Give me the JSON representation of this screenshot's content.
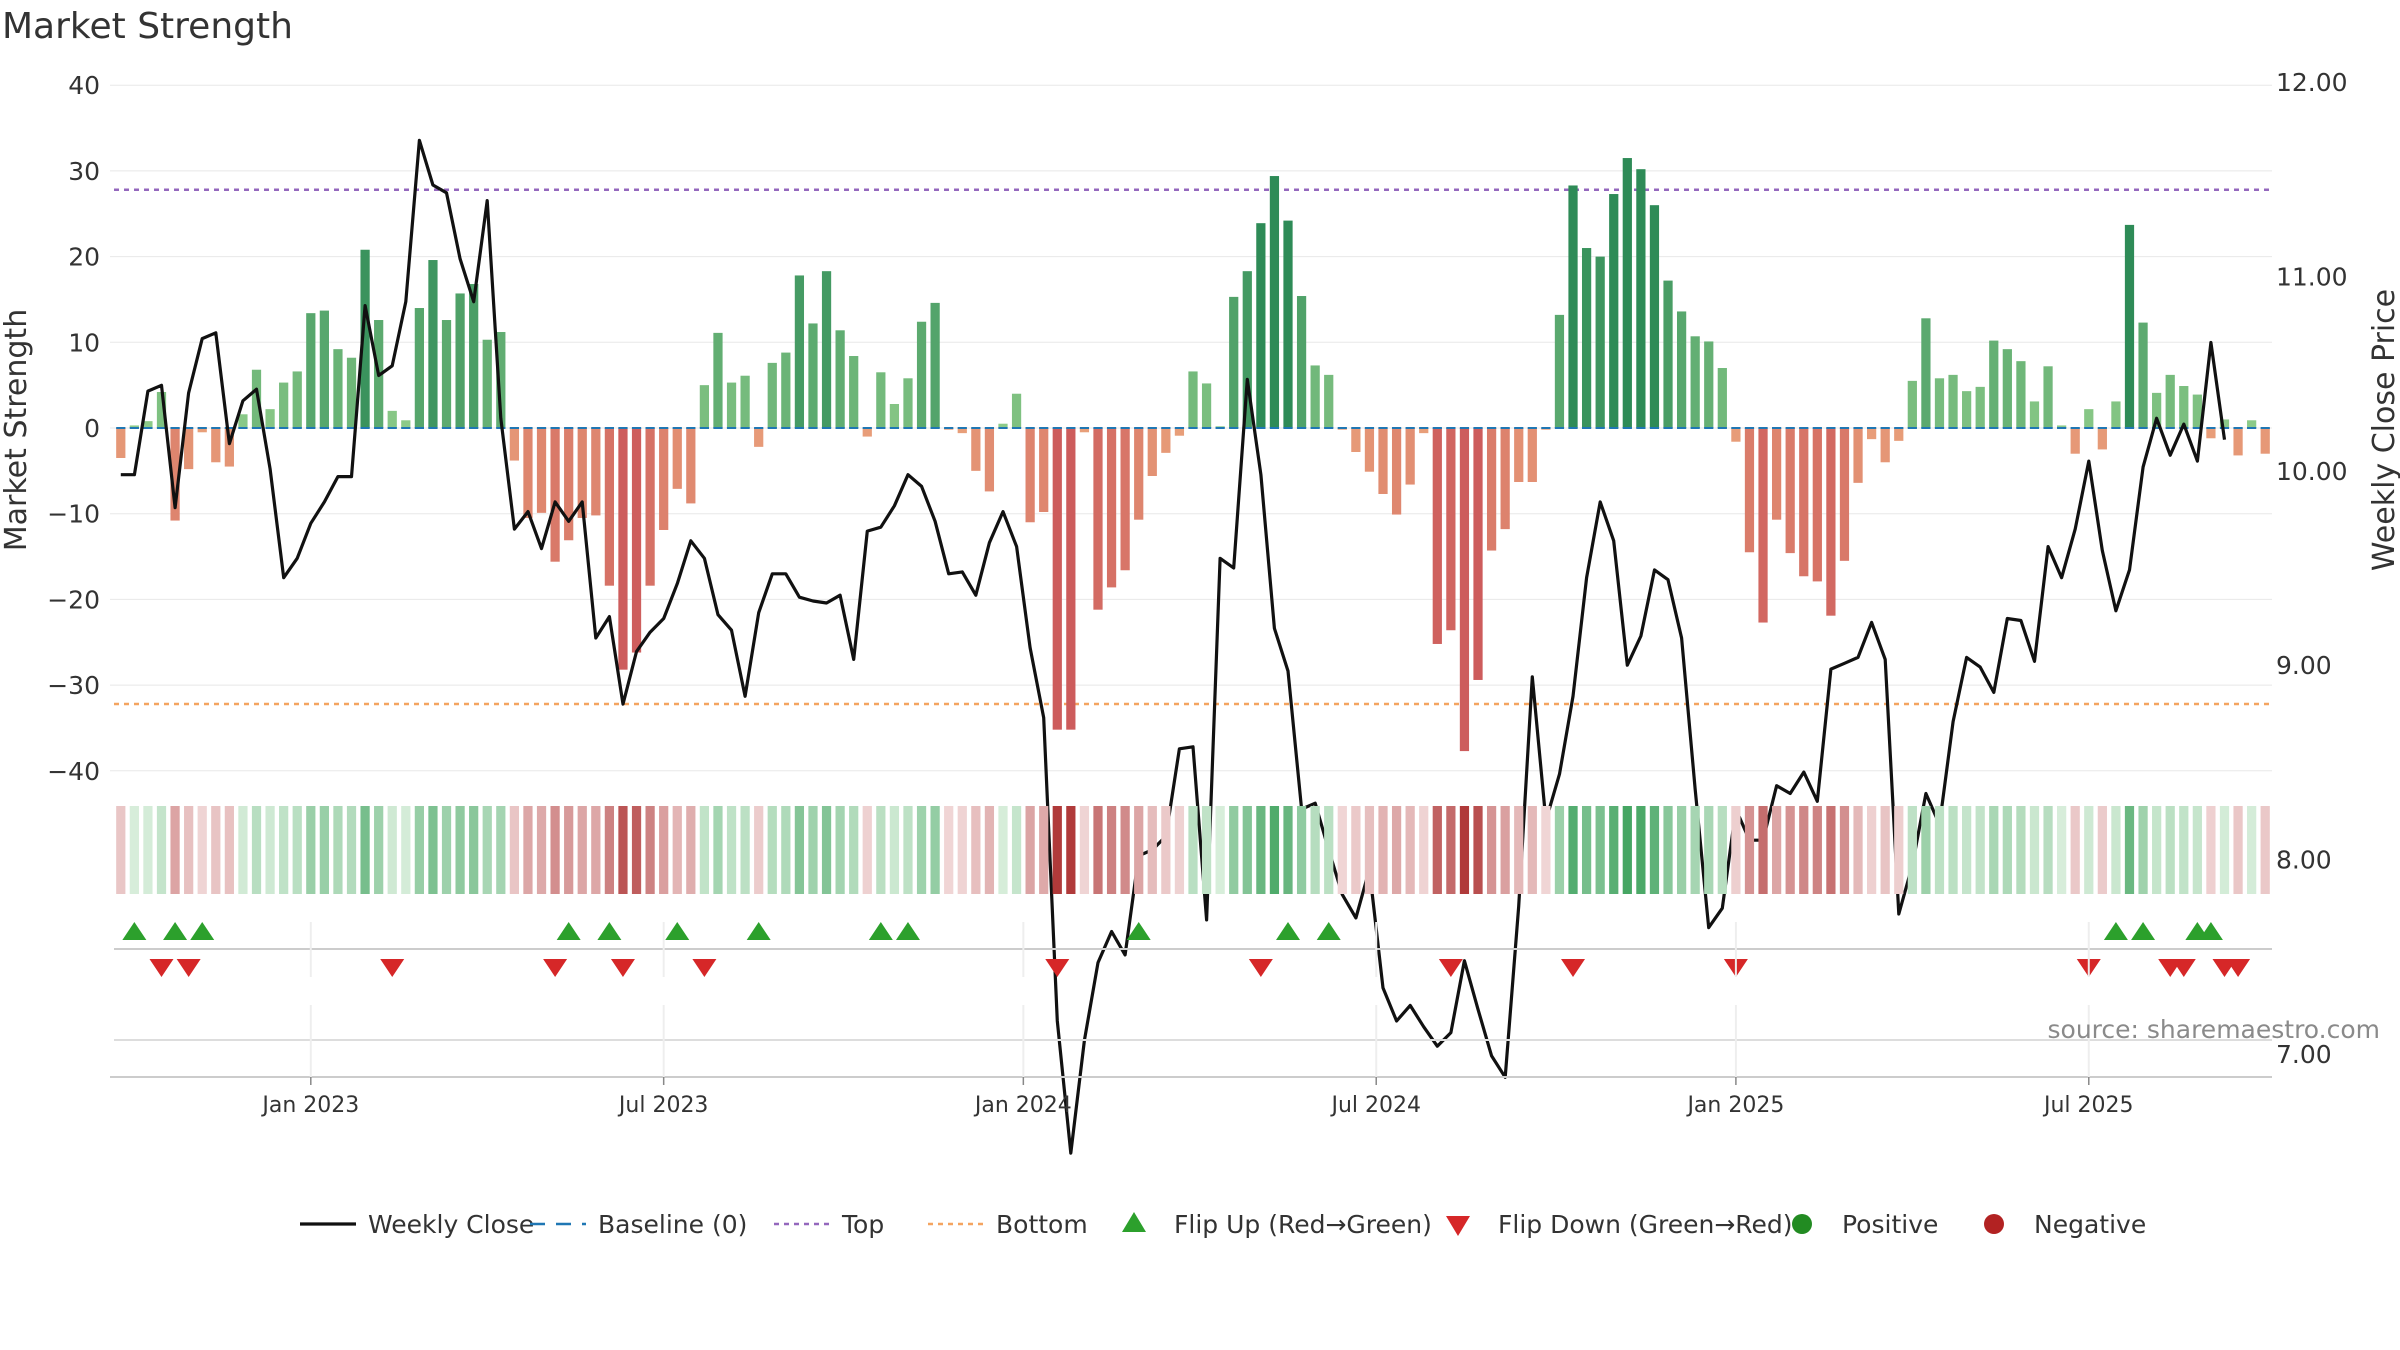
{
  "chart_data": {
    "type": "bar",
    "title": "Market Strength",
    "ylabel": "Market Strength",
    "y2label": "Weekly Close Price",
    "ylim": [
      -42,
      42
    ],
    "y2lim": [
      6.05,
      12.2
    ],
    "yticks": [
      40,
      30,
      20,
      10,
      0,
      -10,
      -20,
      -30,
      -40
    ],
    "ytick_labels": [
      "40",
      "30",
      "20",
      "10",
      "0",
      "−10",
      "−20",
      "−30",
      "−40"
    ],
    "y2ticks": [
      12,
      11,
      10,
      9,
      8,
      7
    ],
    "y2tick_labels": [
      "12.00",
      "11.00",
      "10.00",
      "9.00",
      "8.00",
      "7.00"
    ],
    "top_line": 27.8,
    "bottom_line": -32.2,
    "baseline": 0,
    "date_ticks": [
      {
        "index": 14.5,
        "label": "Jan 2023"
      },
      {
        "index": 40.5,
        "label": "Jul 2023"
      },
      {
        "index": 67,
        "label": "Jan 2024"
      },
      {
        "index": 93,
        "label": "Jul 2024"
      },
      {
        "index": 119.5,
        "label": "Jan 2025"
      },
      {
        "index": 145.5,
        "label": "Jul 2025"
      }
    ],
    "strength": [
      -3.5,
      0.3,
      0.8,
      4.2,
      -10.8,
      -4.8,
      -0.5,
      -4,
      -4.5,
      1.6,
      6.8,
      2.2,
      5.3,
      6.6,
      13.4,
      13.7,
      9.2,
      8.2,
      20.8,
      12.6,
      2,
      0.9,
      14,
      19.6,
      12.6,
      15.7,
      16.8,
      10.3,
      11.2,
      -3.8,
      -10.5,
      -9.9,
      -15.6,
      -13.1,
      -10.5,
      -10.2,
      -18.4,
      -28.2,
      -26.2,
      -18.4,
      -11.9,
      -7.1,
      -8.8,
      5,
      11.1,
      5.3,
      6.1,
      -2.2,
      7.6,
      8.8,
      17.8,
      12.2,
      18.3,
      11.4,
      8.4,
      -1,
      6.5,
      2.8,
      5.8,
      12.4,
      14.6,
      -0.2,
      -0.6,
      -5,
      -7.4,
      0.5,
      4,
      -11,
      -9.8,
      -35.2,
      -35.2,
      -0.5,
      -21.2,
      -18.6,
      -16.6,
      -10.7,
      -5.6,
      -2.9,
      -0.9,
      6.6,
      5.2,
      0.2,
      15.3,
      18.3,
      23.9,
      29.4,
      24.2,
      15.4,
      7.3,
      6.2,
      -0.2,
      -2.8,
      -5.1,
      -7.7,
      -10.1,
      -6.6,
      -0.6,
      -25.2,
      -23.6,
      -37.7,
      -29.4,
      -14.3,
      -11.8,
      -6.3,
      -6.3,
      -0.2,
      13.2,
      28.3,
      21,
      20,
      27.3,
      31.5,
      30.2,
      26,
      17.2,
      13.6,
      10.7,
      10.1,
      7,
      -1.6,
      -14.5,
      -22.7,
      -10.7,
      -14.6,
      -17.3,
      -17.9,
      -21.9,
      -15.5,
      -6.4,
      -1.3,
      -4,
      -1.5,
      5.5,
      12.8,
      5.8,
      6.2,
      4.3,
      4.8,
      10.2,
      9.2,
      7.8,
      3.1,
      7.2,
      0.3,
      -3,
      2.2,
      -2.5,
      3.1,
      23.7,
      12.3,
      4.1,
      6.2,
      4.9,
      3.9,
      -1.2,
      1,
      -3.2,
      0.9,
      -3
    ],
    "close": [
      9.98,
      9.98,
      10.41,
      10.44,
      9.81,
      10.4,
      10.68,
      10.71,
      10.14,
      10.36,
      10.42,
      10.01,
      9.45,
      9.55,
      9.73,
      9.84,
      9.97,
      9.97,
      10.85,
      10.49,
      10.54,
      10.87,
      11.7,
      11.47,
      11.43,
      11.09,
      10.87,
      11.39,
      10.27,
      9.7,
      9.79,
      9.6,
      9.84,
      9.74,
      9.84,
      9.14,
      9.25,
      8.8,
      9.07,
      9.17,
      9.24,
      9.42,
      9.64,
      9.55,
      9.26,
      9.18,
      8.84,
      9.27,
      9.47,
      9.47,
      9.35,
      9.33,
      9.32,
      9.36,
      9.03,
      9.69,
      9.71,
      9.82,
      9.98,
      9.92,
      9.74,
      9.47,
      9.48,
      9.36,
      9.63,
      9.79,
      9.61,
      9.09,
      8.73,
      7.17,
      6.49,
      7.07,
      7.47,
      7.63,
      7.51,
      8.02,
      8.05,
      8.12,
      8.57,
      8.58,
      7.69,
      9.55,
      9.5,
      10.47,
      9.98,
      9.19,
      8.97,
      8.26,
      8.29,
      8.05,
      7.82,
      7.7,
      7.95,
      7.34,
      7.17,
      7.25,
      7.14,
      7.04,
      7.11,
      7.48,
      7.23,
      6.99,
      6.88,
      7.76,
      8.94,
      8.2,
      8.44,
      8.84,
      9.45,
      9.84,
      9.64,
      9,
      9.15,
      9.49,
      9.44,
      9.14,
      8.36,
      7.65,
      7.75,
      8.26,
      8.1,
      8.1,
      8.38,
      8.34,
      8.45,
      8.3,
      8.98,
      9.01,
      9.04,
      9.22,
      9.03,
      7.72,
      7.97,
      8.34,
      8.18,
      8.71,
      9.04,
      8.99,
      8.86,
      9.24,
      9.23,
      9.02,
      9.61,
      9.45,
      9.7,
      10.05,
      9.59,
      9.28,
      9.49,
      10.02,
      10.27,
      10.08,
      10.24,
      10.05,
      10.66,
      10.16
    ],
    "flip_up": [
      1,
      4,
      6,
      33,
      36,
      41,
      47,
      56,
      58,
      75,
      86,
      89,
      147,
      149,
      153,
      154
    ],
    "flip_down": [
      3,
      5,
      20,
      32,
      37,
      43,
      69,
      84,
      98,
      107,
      119,
      145,
      151,
      152,
      155,
      156
    ],
    "series": [
      {
        "name": "Weekly Close",
        "color": "#111111"
      },
      {
        "name": "Market Strength",
        "positive_color": "#2e8b57",
        "negative_color": "#cd5c5c"
      }
    ],
    "legend": [
      {
        "label": "Weekly Close",
        "symbol": "line",
        "color": "#111111"
      },
      {
        "label": "Baseline (0)",
        "symbol": "dash",
        "color": "#1f77b4"
      },
      {
        "label": "Top",
        "symbol": "dot",
        "color": "#9467bd"
      },
      {
        "label": "Bottom",
        "symbol": "dot",
        "color": "#f4a460"
      },
      {
        "label": "Flip Up (Red→Green)",
        "symbol": "tri-up",
        "color": "#2ca02c"
      },
      {
        "label": "Flip Down (Green→Red)",
        "symbol": "tri-down",
        "color": "#d62728"
      },
      {
        "label": "Positive",
        "symbol": "circle",
        "color": "#228b22"
      },
      {
        "label": "Negative",
        "symbol": "circle",
        "color": "#b22222"
      }
    ],
    "legend_position": "bottom",
    "source": "source: sharemaestro.com"
  }
}
